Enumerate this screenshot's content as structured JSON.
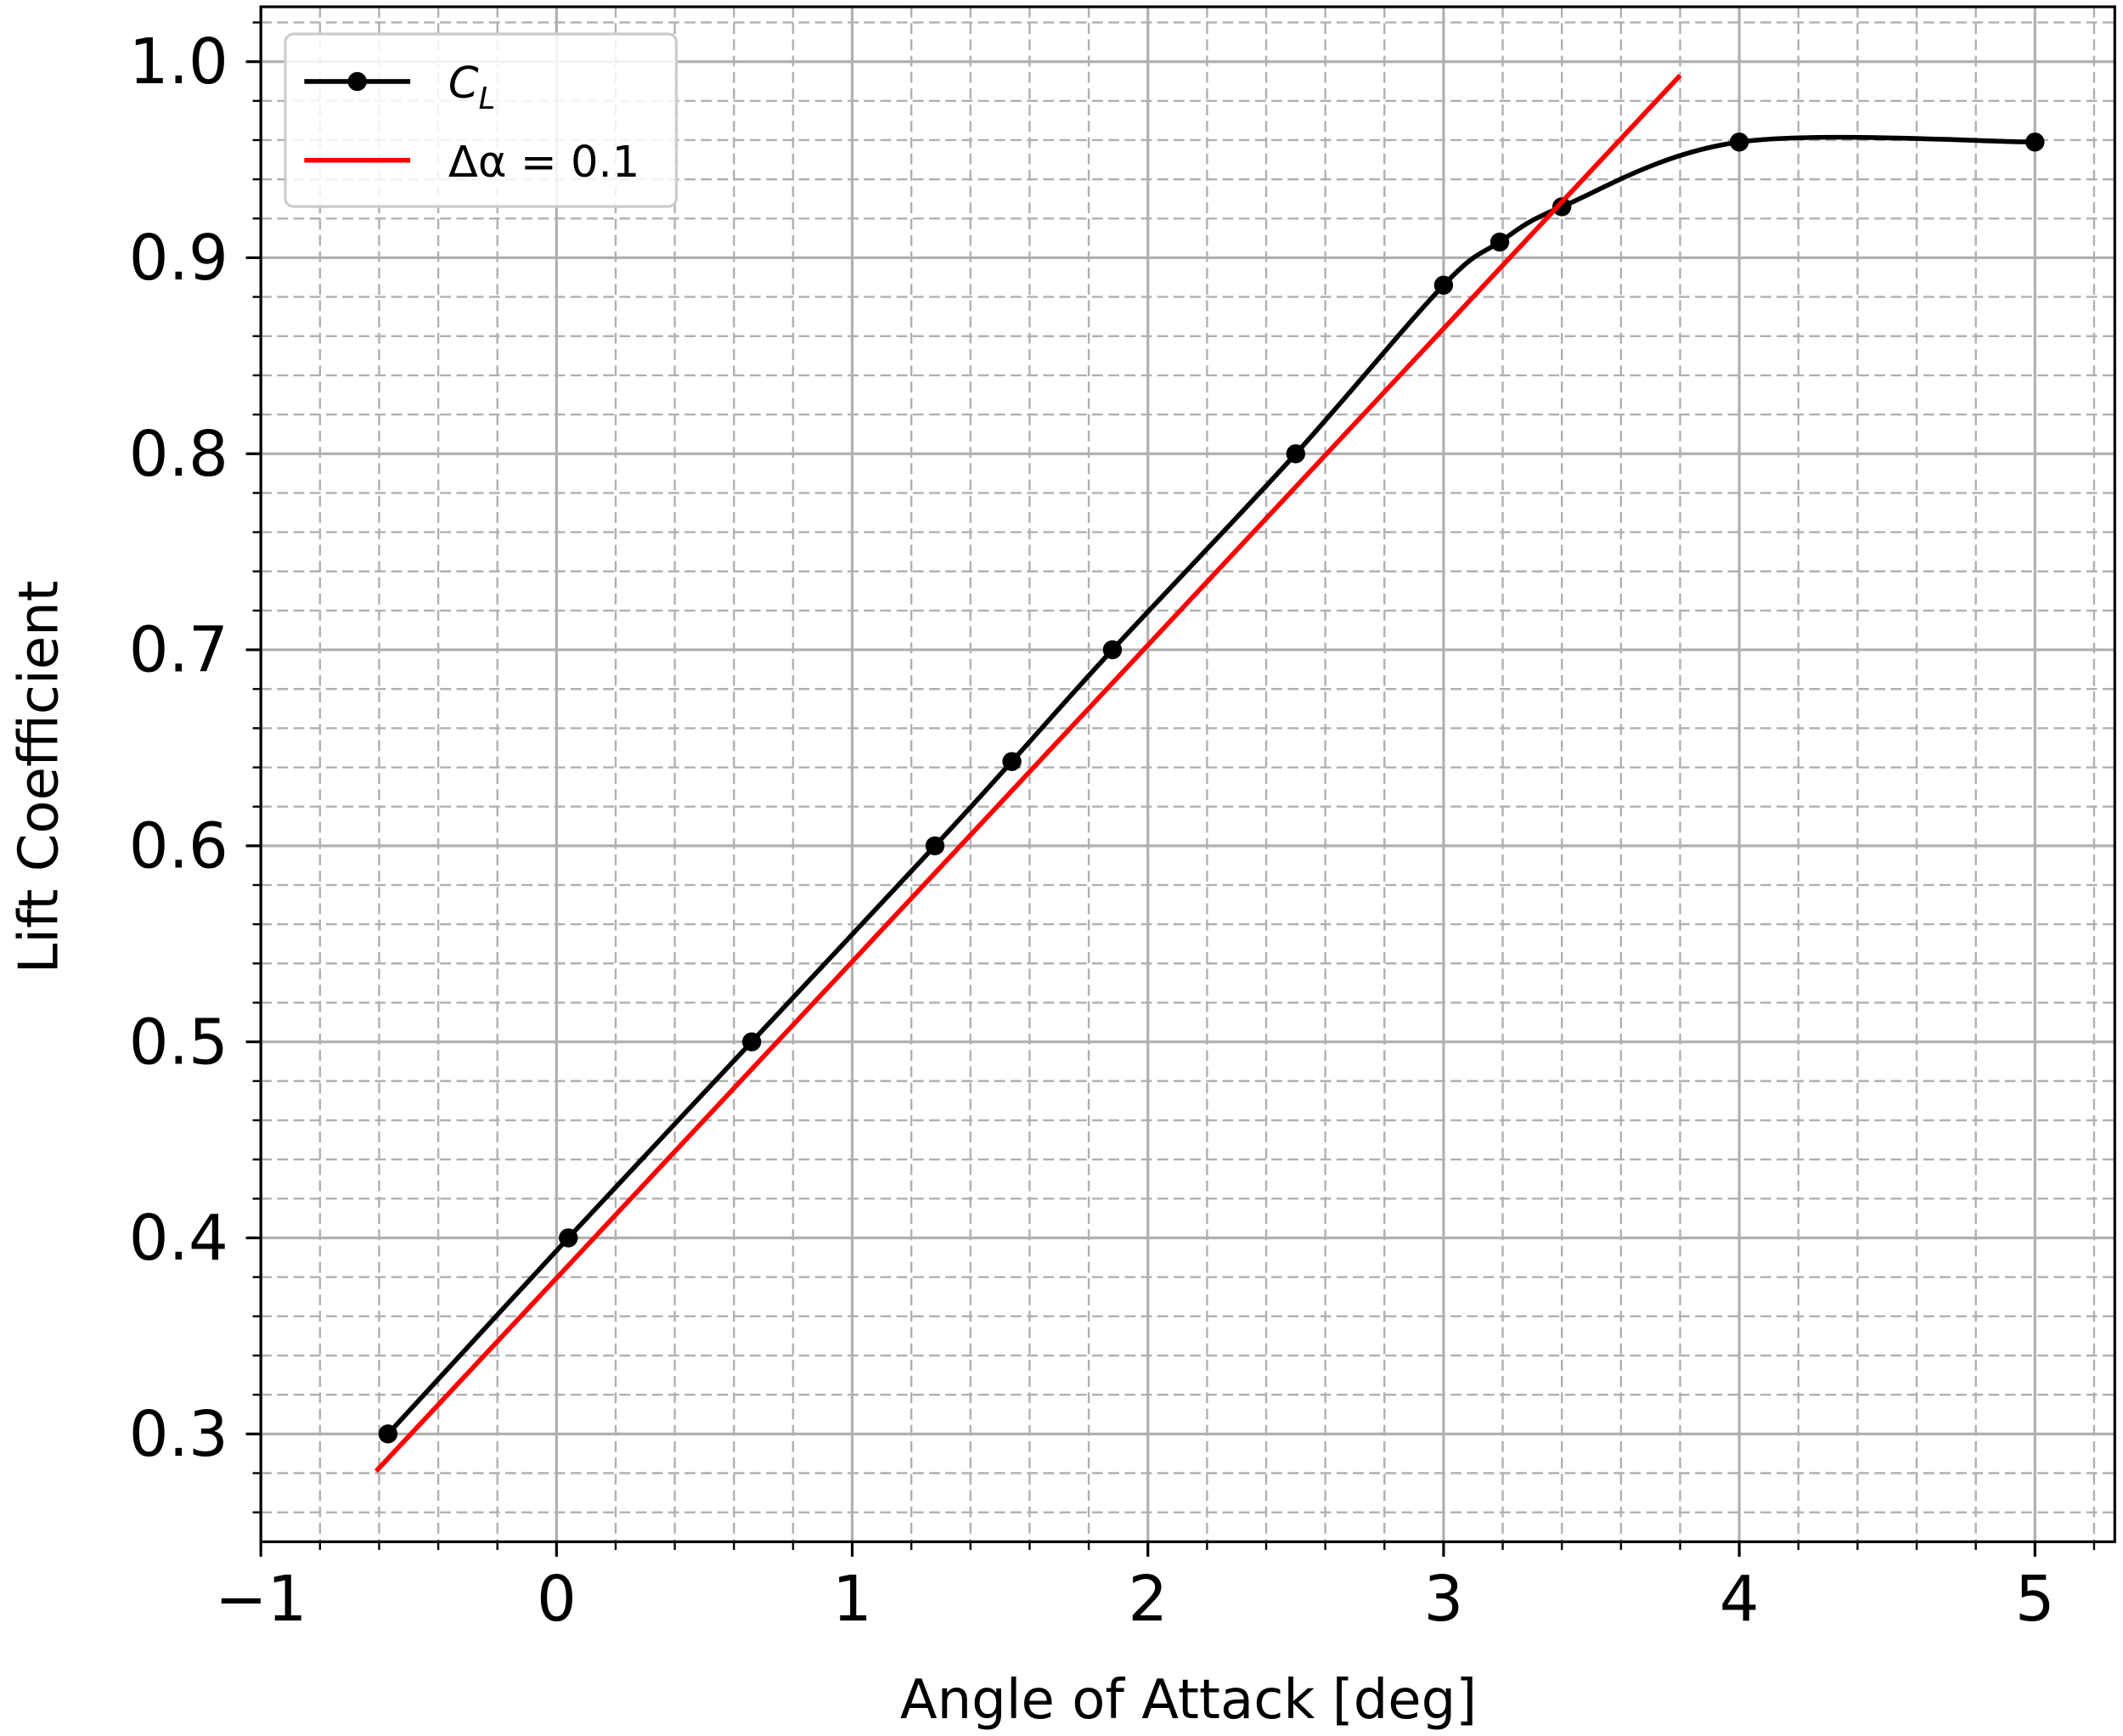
{
  "chart_data": {
    "type": "line",
    "xlabel": "Angle of Attack [deg]",
    "ylabel": "Lift Coefficient",
    "series": [
      {
        "name": "CL",
        "color": "#000000",
        "marker": true,
        "smooth": true,
        "x": [
          -0.57,
          0.04,
          0.66,
          1.28,
          1.54,
          1.88,
          2.5,
          3.0,
          3.19,
          3.4,
          4.0,
          5.0
        ],
        "values": [
          0.3,
          0.4,
          0.5,
          0.6,
          0.643,
          0.7,
          0.8,
          0.886,
          0.908,
          0.926,
          0.959,
          0.959
        ]
      },
      {
        "name": "Δα = 0.1",
        "color": "#ff0000",
        "marker": false,
        "smooth": false,
        "x": [
          -0.61,
          3.8
        ],
        "values": [
          0.281,
          0.993
        ]
      }
    ],
    "xlim": [
      -1.0,
      5.27
    ],
    "ylim": [
      0.245,
      1.028
    ],
    "xticks": [
      {
        "value": -1,
        "label": "−1"
      },
      0,
      1,
      2,
      3,
      4,
      5
    ],
    "yticks": [
      {
        "value": 0.3,
        "label": "0.3"
      },
      {
        "value": 0.4,
        "label": "0.4"
      },
      {
        "value": 0.5,
        "label": "0.5"
      },
      {
        "value": 0.6,
        "label": "0.6"
      },
      {
        "value": 0.7,
        "label": "0.7"
      },
      {
        "value": 0.8,
        "label": "0.8"
      },
      {
        "value": 0.9,
        "label": "0.9"
      },
      {
        "value": 1.0,
        "label": "1.0"
      }
    ],
    "xminorticks": [
      -0.8,
      -0.6,
      -0.4,
      -0.2,
      0.2,
      0.4,
      0.6,
      0.8,
      1.2,
      1.4,
      1.6,
      1.8,
      2.2,
      2.4,
      2.6,
      2.8,
      3.2,
      3.4,
      3.6,
      3.8,
      4.2,
      4.4,
      4.6,
      4.8,
      5.2
    ],
    "yminorticks": [
      0.26,
      0.28,
      0.32,
      0.34,
      0.36,
      0.38,
      0.42,
      0.44,
      0.46,
      0.48,
      0.52,
      0.54,
      0.56,
      0.58,
      0.62,
      0.64,
      0.66,
      0.68,
      0.72,
      0.74,
      0.76,
      0.78,
      0.82,
      0.84,
      0.86,
      0.88,
      0.92,
      0.94,
      0.96,
      0.98,
      1.02
    ],
    "grid": true,
    "minor_grid": true,
    "legend": "upper left"
  }
}
